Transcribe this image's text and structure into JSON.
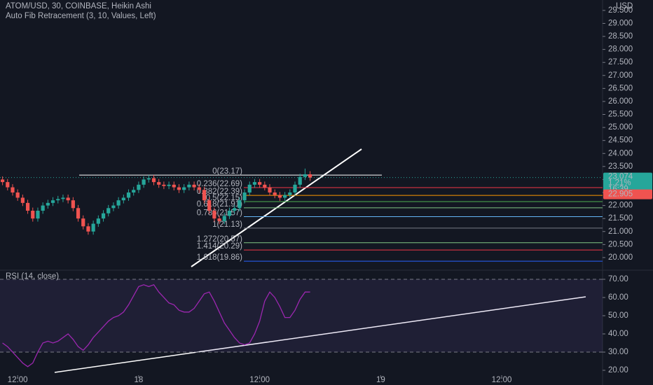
{
  "header": {
    "symbol": "ATOM/USD, 30, COINBASE, Heikin Ashi",
    "indicator": "Auto Fib Retracement (3, 10, Values, Left)",
    "currency": "USD"
  },
  "chart_data": [
    {
      "type": "candlestick",
      "up_color": "#26a69a",
      "down_color": "#ef5350",
      "open": [
        23.0,
        22.9,
        22.7,
        22.5,
        22.3,
        22.1,
        21.8,
        21.5,
        21.8,
        22.0,
        22.1,
        22.2,
        22.25,
        22.3,
        22.2,
        21.9,
        21.5,
        21.2,
        21.0,
        21.3,
        21.5,
        21.7,
        21.9,
        22.0,
        22.2,
        22.3,
        22.5,
        22.6,
        22.8,
        23.0,
        23.05,
        22.9,
        22.8,
        22.75,
        22.8,
        22.7,
        22.6,
        22.7,
        22.8,
        22.7,
        22.6,
        22.2,
        21.8,
        21.5,
        21.4,
        21.6,
        21.8,
        21.9,
        22.2,
        22.5,
        22.8,
        22.9,
        22.8,
        22.7,
        22.5,
        22.4,
        22.3,
        22.4,
        22.5,
        22.8,
        23.1,
        23.2
      ],
      "high": [
        23.12,
        23.02,
        22.82,
        22.62,
        22.42,
        22.22,
        21.92,
        21.92,
        22.12,
        22.22,
        22.32,
        22.37,
        22.42,
        22.42,
        22.32,
        22.02,
        21.62,
        21.32,
        21.42,
        21.62,
        21.82,
        22.02,
        22.12,
        22.32,
        22.42,
        22.62,
        22.72,
        22.92,
        23.12,
        23.17,
        23.17,
        23.02,
        22.92,
        22.92,
        22.92,
        22.82,
        22.82,
        22.92,
        22.92,
        22.82,
        22.72,
        22.32,
        21.92,
        21.62,
        21.72,
        21.92,
        22.02,
        22.32,
        22.62,
        22.92,
        23.02,
        23.02,
        22.92,
        22.82,
        22.62,
        22.52,
        22.52,
        22.62,
        22.92,
        23.22,
        23.42,
        23.32
      ],
      "low": [
        22.78,
        22.58,
        22.38,
        22.18,
        21.98,
        21.68,
        21.38,
        21.38,
        21.68,
        21.88,
        21.98,
        22.08,
        22.13,
        22.08,
        21.78,
        21.38,
        21.08,
        20.88,
        20.88,
        21.18,
        21.38,
        21.58,
        21.78,
        21.88,
        22.08,
        22.18,
        22.38,
        22.48,
        22.68,
        22.88,
        22.78,
        22.68,
        22.63,
        22.63,
        22.58,
        22.48,
        22.48,
        22.58,
        22.58,
        22.48,
        22.08,
        21.68,
        21.38,
        21.28,
        21.28,
        21.48,
        21.68,
        21.78,
        22.08,
        22.38,
        22.68,
        22.68,
        22.58,
        22.38,
        22.28,
        22.18,
        22.18,
        22.28,
        22.38,
        22.68,
        22.98,
        22.95
      ],
      "close": [
        22.9,
        22.7,
        22.5,
        22.3,
        22.1,
        21.8,
        21.5,
        21.8,
        22.0,
        22.1,
        22.2,
        22.25,
        22.3,
        22.2,
        21.9,
        21.5,
        21.2,
        21.0,
        21.3,
        21.5,
        21.7,
        21.9,
        22.0,
        22.2,
        22.3,
        22.5,
        22.6,
        22.8,
        23.0,
        23.05,
        22.9,
        22.8,
        22.75,
        22.8,
        22.7,
        22.6,
        22.7,
        22.8,
        22.7,
        22.6,
        22.2,
        21.8,
        21.5,
        21.4,
        21.6,
        21.8,
        21.9,
        22.2,
        22.5,
        22.8,
        22.9,
        22.8,
        22.7,
        22.5,
        22.4,
        22.3,
        22.4,
        22.5,
        22.8,
        23.1,
        23.2,
        23.07
      ],
      "xlim": [
        -0.5,
        119
      ],
      "xticks": [
        {
          "value": 3,
          "label": "12:00"
        },
        {
          "value": 27,
          "label": "18"
        },
        {
          "value": 51,
          "label": "12:00"
        },
        {
          "value": 75,
          "label": "19"
        },
        {
          "value": 99,
          "label": "12:00"
        }
      ],
      "ylim": [
        19.54,
        29.9
      ],
      "yticks": [
        {
          "value": 20,
          "label": "20.000"
        },
        {
          "value": 20.5,
          "label": "20.500"
        },
        {
          "value": 21,
          "label": "21.000"
        },
        {
          "value": 21.5,
          "label": "21.500"
        },
        {
          "value": 22,
          "label": "22.000"
        },
        {
          "value": 22.5,
          "label": "22.500"
        },
        {
          "value": 23,
          "label": "23.000"
        },
        {
          "value": 23.5,
          "label": "23.500"
        },
        {
          "value": 24,
          "label": "24.000"
        },
        {
          "value": 24.5,
          "label": "24.500"
        },
        {
          "value": 25,
          "label": "25.000"
        },
        {
          "value": 25.5,
          "label": "25.500"
        },
        {
          "value": 26,
          "label": "26.000"
        },
        {
          "value": 26.5,
          "label": "26.500"
        },
        {
          "value": 27,
          "label": "27.000"
        },
        {
          "value": 27.5,
          "label": "27.500"
        },
        {
          "value": 28,
          "label": "28.000"
        },
        {
          "value": 28.5,
          "label": "28.500"
        },
        {
          "value": 29,
          "label": "29.000"
        },
        {
          "value": 29.5,
          "label": "29.500"
        }
      ],
      "fib_levels": [
        {
          "label": "0(23.17)",
          "value": 23.17,
          "color": "#787b86"
        },
        {
          "label": "0.236(22.69)",
          "value": 22.69,
          "color": "#f23645"
        },
        {
          "label": "0.382(22.39)",
          "value": 22.39,
          "color": "#ff9800"
        },
        {
          "label": "0.5(22.15)",
          "value": 22.15,
          "color": "#4caf50"
        },
        {
          "label": "0.618(21.91)",
          "value": 21.91,
          "color": "#81c784"
        },
        {
          "label": "0.786(21.57)",
          "value": 21.57,
          "color": "#64b5f6"
        },
        {
          "label": "1(21.13)",
          "value": 21.13,
          "color": "#787b86"
        },
        {
          "label": "1.272(20.57)",
          "value": 20.57,
          "color": "#81c784"
        },
        {
          "label": "1.414(20.29)",
          "value": 20.29,
          "color": "#f23645"
        },
        {
          "label": "1.618(19.86)",
          "value": 19.86,
          "color": "#2962ff"
        }
      ],
      "last_price": 23.074,
      "change": "1.21%",
      "countdown": "16:39",
      "prev_price": 22.905
    },
    {
      "type": "line",
      "title": "RSI (14, close)",
      "color": "#9c27b0",
      "values": [
        35,
        33,
        30,
        27,
        24,
        22,
        24,
        30,
        35,
        36,
        35,
        36,
        38,
        40,
        37,
        33,
        31,
        34,
        38,
        41,
        44,
        47,
        49,
        50,
        52,
        56,
        61,
        66,
        67,
        66,
        67,
        63,
        60,
        57,
        56,
        53,
        52,
        52,
        54,
        58,
        62,
        63,
        58,
        52,
        46,
        42,
        38,
        35,
        34,
        35,
        40,
        47,
        58,
        63,
        60,
        55,
        49,
        49,
        53,
        59,
        63,
        63
      ],
      "ylim": [
        11.92,
        74.23
      ],
      "yticks": [
        {
          "value": 20,
          "label": "20.00"
        },
        {
          "value": 30,
          "label": "30.00"
        },
        {
          "value": 40,
          "label": "40.00"
        },
        {
          "value": 50,
          "label": "50.00"
        },
        {
          "value": 60,
          "label": "60.00"
        },
        {
          "value": 70,
          "label": "70.00"
        }
      ],
      "band": [
        30,
        70
      ]
    }
  ]
}
